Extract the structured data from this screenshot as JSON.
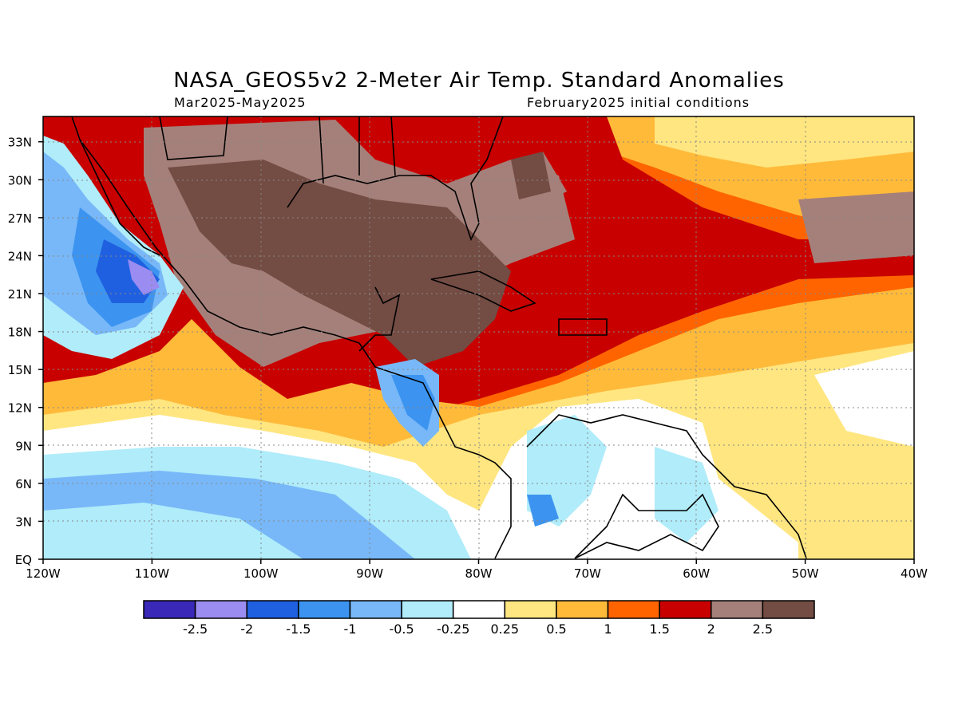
{
  "title": "NASA_GEOS5v2 2-Meter Air Temp. Standard Anomalies",
  "subtitle_left": "Mar2025-May2025",
  "subtitle_right": "February2025 initial conditions",
  "map": {
    "lon_range": [
      -120,
      -40
    ],
    "lat_range": [
      0,
      35
    ],
    "lat_ticks": [
      "33N",
      "30N",
      "27N",
      "24N",
      "21N",
      "18N",
      "15N",
      "12N",
      "9N",
      "6N",
      "3N",
      "EQ"
    ],
    "lon_ticks": [
      "120W",
      "110W",
      "100W",
      "90W",
      "80W",
      "70W",
      "60W",
      "50W",
      "40W"
    ],
    "grid": "dotted"
  },
  "colorbar": {
    "colors": [
      "#3a28b8",
      "#9a8cf0",
      "#1f60e0",
      "#3c94f0",
      "#78b8f8",
      "#b0ecfa",
      "#ffffff",
      "#ffe680",
      "#ffba3a",
      "#ff6400",
      "#c80000",
      "#a5807a",
      "#734c44"
    ],
    "labels": [
      "-2.5",
      "-2",
      "-1.5",
      "-1",
      "-0.5",
      "-0.25",
      "0.25",
      "0.5",
      "1",
      "1.5",
      "2",
      "2.5"
    ]
  }
}
